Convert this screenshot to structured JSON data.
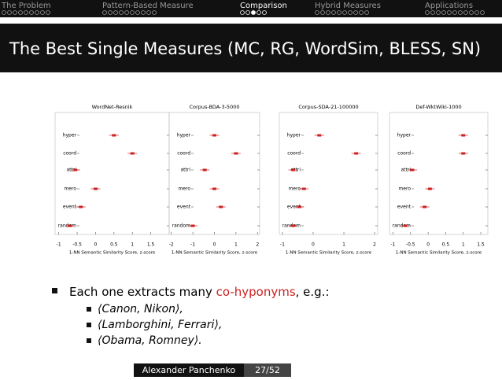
{
  "nav": [
    "The Problem",
    "Pattern-Based Measure",
    "Comparison",
    "Hybrid Measures",
    "Applications"
  ],
  "title": "The Best Single Measures (MC, RG, WordSim, BLESS, SN)",
  "panels": [
    {
      "type": "box",
      "title": "WordNet-Resnik",
      "categories": [
        "hyper",
        "coord",
        "attri",
        "mero",
        "event",
        "random"
      ],
      "values": [
        0.5,
        1.0,
        -0.55,
        0,
        -0.4,
        -0.7
      ],
      "xlim": [
        -1.1,
        2
      ],
      "xticks": [
        -1,
        -0.5,
        0,
        0.5,
        1,
        1.5
      ],
      "xlabel": "1-NN Semantic Similarity Score, z-score",
      "color": "#cc2222"
    },
    {
      "type": "box",
      "title": "Corpus-BDA-3-5000",
      "categories": [
        "hyper",
        "coord",
        "attri",
        "mero",
        "event",
        "random"
      ],
      "values": [
        0,
        1,
        -0.45,
        0,
        0.3,
        -1
      ],
      "xlim": [
        -2.1,
        2.1
      ],
      "xticks": [
        -2,
        -1,
        0,
        1,
        2
      ],
      "xlabel": "1-NN Semantic Similarity Score, z-score",
      "color": "#cc2222"
    },
    {
      "type": "box",
      "title": "Corpus-SDA-21-100000",
      "categories": [
        "hyper",
        "coord",
        "attri",
        "mero",
        "event",
        "random"
      ],
      "values": [
        0.2,
        1.4,
        -0.65,
        -0.3,
        -0.45,
        -0.65
      ],
      "xlim": [
        -1.1,
        2.1
      ],
      "xticks": [
        -1,
        0,
        1,
        2
      ],
      "xlabel": "1-NN Semantic Similarity Score, z-score",
      "color": "#cc2222"
    },
    {
      "type": "box",
      "title": "Def-WktWiki-1000",
      "categories": [
        "hyper",
        "coord",
        "attri",
        "mero",
        "event",
        "random"
      ],
      "values": [
        1.0,
        1.0,
        -0.45,
        0.05,
        -0.1,
        -0.65
      ],
      "xlim": [
        -1.1,
        1.7
      ],
      "xticks": [
        -1,
        -0.5,
        0,
        0.5,
        1,
        1.5
      ],
      "xlabel": "1-NN Semantic Similarity Score, z-score",
      "color": "#cc2222"
    }
  ],
  "bullet": {
    "before": "Each one extracts many ",
    "highlight": "co-hyponyms",
    "after": ", e.g.:"
  },
  "examples": [
    "⟨Canon, Nikon⟩,",
    "⟨Lamborghini, Ferrari⟩,",
    "⟨Obama, Romney⟩."
  ],
  "footer": {
    "author": "Alexander Panchenko",
    "page": "27/52"
  }
}
